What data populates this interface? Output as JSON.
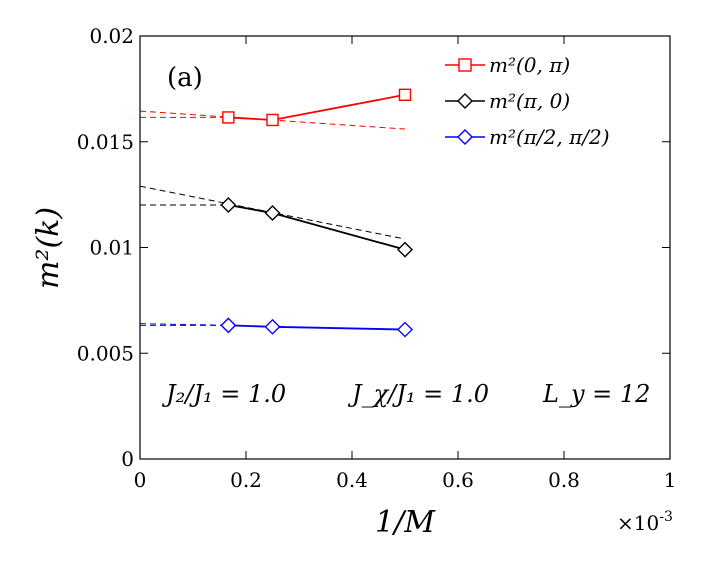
{
  "chart_data": {
    "type": "line",
    "panel_label": "(a)",
    "xlabel": "1/M",
    "ylabel": "m²(k)",
    "x_multiplier": "×10",
    "x_multiplier_exp": "-3",
    "xlim": [
      0,
      1
    ],
    "ylim": [
      0,
      0.02
    ],
    "xticks": [
      0,
      0.2,
      0.4,
      0.6,
      0.8,
      1
    ],
    "xtick_labels": [
      "0",
      "0.2",
      "0.4",
      "0.6",
      "0.8",
      "1"
    ],
    "yticks": [
      0,
      0.005,
      0.01,
      0.015,
      0.02
    ],
    "ytick_labels": [
      "0",
      "0.005",
      "0.01",
      "0.015",
      "0.02"
    ],
    "annotations": [
      "J₂/J₁ = 1.0",
      "J_χ/J₁ = 1.0",
      "L_y = 12"
    ],
    "series": [
      {
        "name": "m²(0, π)",
        "color": "#ff0000",
        "marker": "square",
        "x": [
          0.1667,
          0.25,
          0.5
        ],
        "y": [
          0.01615,
          0.01603,
          0.01722
        ],
        "fits": [
          {
            "x": [
              0,
              0.5
            ],
            "y": [
              0.01645,
              0.0156
            ]
          },
          {
            "x": [
              0,
              0.1667
            ],
            "y": [
              0.01615,
              0.01615
            ]
          }
        ]
      },
      {
        "name": "m²(π, 0)",
        "color": "#000000",
        "marker": "diamond",
        "x": [
          0.1667,
          0.25,
          0.5
        ],
        "y": [
          0.01201,
          0.01163,
          0.0099
        ],
        "fits": [
          {
            "x": [
              0,
              0.5
            ],
            "y": [
              0.0129,
              0.0104
            ]
          },
          {
            "x": [
              0,
              0.1667
            ],
            "y": [
              0.01201,
              0.01201
            ]
          }
        ]
      },
      {
        "name": "m²(π/2, π/2)",
        "color": "#0000ff",
        "marker": "diamond",
        "x": [
          0.1667,
          0.25,
          0.5
        ],
        "y": [
          0.00632,
          0.00625,
          0.00612
        ],
        "fits": [
          {
            "x": [
              0,
              0.1667
            ],
            "y": [
              0.0064,
              0.00632
            ]
          },
          {
            "x": [
              0,
              0.1667
            ],
            "y": [
              0.00632,
              0.00632
            ]
          }
        ]
      }
    ]
  }
}
